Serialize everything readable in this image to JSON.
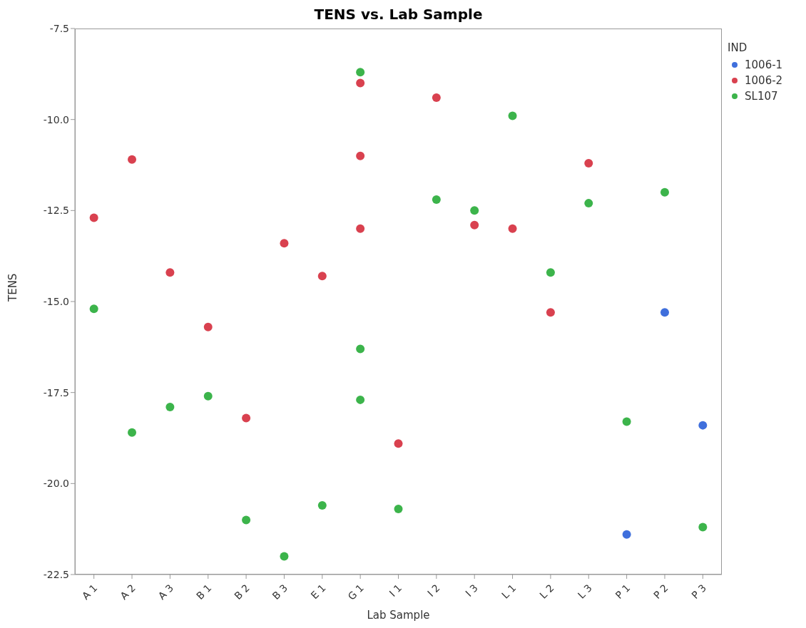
{
  "chart_data": {
    "type": "scatter",
    "title": "TENS vs. Lab Sample",
    "xlabel": "Lab Sample",
    "ylabel": "TENS",
    "legend_title": "IND",
    "legend": "top right",
    "marker": "circle",
    "categories": [
      "A 1",
      "A 2",
      "A 3",
      "B 1",
      "B 2",
      "B 3",
      "E 1",
      "G 1",
      "I 1",
      "I 2",
      "I 3",
      "L 1",
      "L 2",
      "L 3",
      "P 1",
      "P 2",
      "P 3"
    ],
    "ylim": [
      -22.5,
      -7.5
    ],
    "yticks": [
      -7.5,
      {
        "value": -10,
        "label": "-10.0"
      },
      -12.5,
      {
        "value": -15,
        "label": "-15.0"
      },
      -17.5,
      {
        "value": -20,
        "label": "-20.0"
      },
      -22.5
    ],
    "series": [
      {
        "name": "1006-1",
        "color": "#3f6fdc",
        "x": [
          "P 1",
          "P 2",
          "P 3"
        ],
        "values": [
          -21.4,
          -15.3,
          -18.4
        ]
      },
      {
        "name": "1006-2",
        "color": "#d9414f",
        "x": [
          "A 1",
          "A 2",
          "A 3",
          "B 1",
          "B 2",
          "B 3",
          "E 1",
          "G 1",
          "G 1",
          "G 1",
          "I 1",
          "I 2",
          "I 3",
          "L 1",
          "L 2",
          "L 3"
        ],
        "values": [
          -12.7,
          -11.1,
          -14.2,
          -15.7,
          -18.2,
          -13.4,
          -14.3,
          -9.0,
          -11.0,
          -13.0,
          -18.9,
          -9.4,
          -12.9,
          -13.0,
          -15.3,
          -11.2
        ]
      },
      {
        "name": "SL107",
        "color": "#3cb44b",
        "x": [
          "A 1",
          "A 2",
          "A 3",
          "B 1",
          "B 2",
          "B 3",
          "E 1",
          "G 1",
          "G 1",
          "G 1",
          "I 1",
          "I 2",
          "I 3",
          "L 1",
          "L 2",
          "L 3",
          "P 1",
          "P 2",
          "P 3"
        ],
        "values": [
          -15.2,
          -18.6,
          -17.9,
          -17.6,
          -21.0,
          -22.0,
          -20.6,
          -8.7,
          -16.3,
          -17.7,
          -20.7,
          -12.2,
          -12.5,
          -9.9,
          -14.2,
          -12.3,
          -18.3,
          -12.0,
          -21.2
        ]
      }
    ]
  }
}
